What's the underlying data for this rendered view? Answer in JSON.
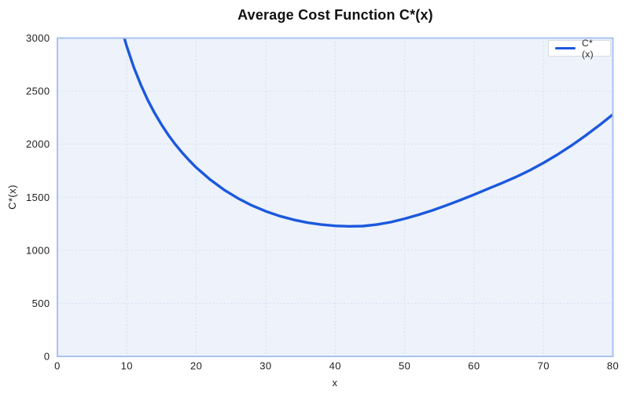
{
  "title": "Average Cost Function C*(x)",
  "colors": {
    "line": "#1b58dd",
    "plot_bg": "#edf2fb",
    "frame": "#a9c3ee",
    "grid": "#cfdcf3",
    "title_text": "#111111",
    "tick_text": "#1f1f1f",
    "legend_bg": "#ffffff",
    "legend_border": "#d6dbe4"
  },
  "legend": {
    "position": "top-right"
  },
  "chart_data": {
    "type": "line",
    "title": "Average Cost Function C*(x)",
    "xlabel": "x",
    "ylabel": "C*(x)",
    "xlim": [
      0,
      80
    ],
    "ylim": [
      0,
      3000
    ],
    "x_ticks": [
      0,
      10,
      20,
      30,
      40,
      50,
      60,
      70,
      80
    ],
    "y_ticks": [
      0,
      500,
      1000,
      1500,
      2000,
      2500,
      3000
    ],
    "grid": true,
    "legend_position": "top-right",
    "series": [
      {
        "name": "C*(x)",
        "color": "#1b58dd",
        "points": [
          [
            9.4,
            3060
          ],
          [
            9.6,
            3008
          ],
          [
            10,
            2920
          ],
          [
            11,
            2726
          ],
          [
            12,
            2561
          ],
          [
            13,
            2418
          ],
          [
            14,
            2294
          ],
          [
            15,
            2183
          ],
          [
            16,
            2085
          ],
          [
            17,
            1997
          ],
          [
            18,
            1918
          ],
          [
            19,
            1846
          ],
          [
            20,
            1780
          ],
          [
            22,
            1666
          ],
          [
            24,
            1570
          ],
          [
            26,
            1490
          ],
          [
            28,
            1423
          ],
          [
            30,
            1368
          ],
          [
            32,
            1323
          ],
          [
            34,
            1288
          ],
          [
            36,
            1261
          ],
          [
            38,
            1242
          ],
          [
            40,
            1230
          ],
          [
            42,
            1226
          ],
          [
            44,
            1228
          ],
          [
            46,
            1242
          ],
          [
            48,
            1265
          ],
          [
            50,
            1298
          ],
          [
            52,
            1335
          ],
          [
            54,
            1376
          ],
          [
            56,
            1423
          ],
          [
            58,
            1472
          ],
          [
            60,
            1525
          ],
          [
            62,
            1579
          ],
          [
            64,
            1633
          ],
          [
            66,
            1690
          ],
          [
            68,
            1753
          ],
          [
            70,
            1824
          ],
          [
            72,
            1901
          ],
          [
            74,
            1986
          ],
          [
            76,
            2078
          ],
          [
            78,
            2176
          ],
          [
            80,
            2280
          ]
        ]
      }
    ]
  }
}
